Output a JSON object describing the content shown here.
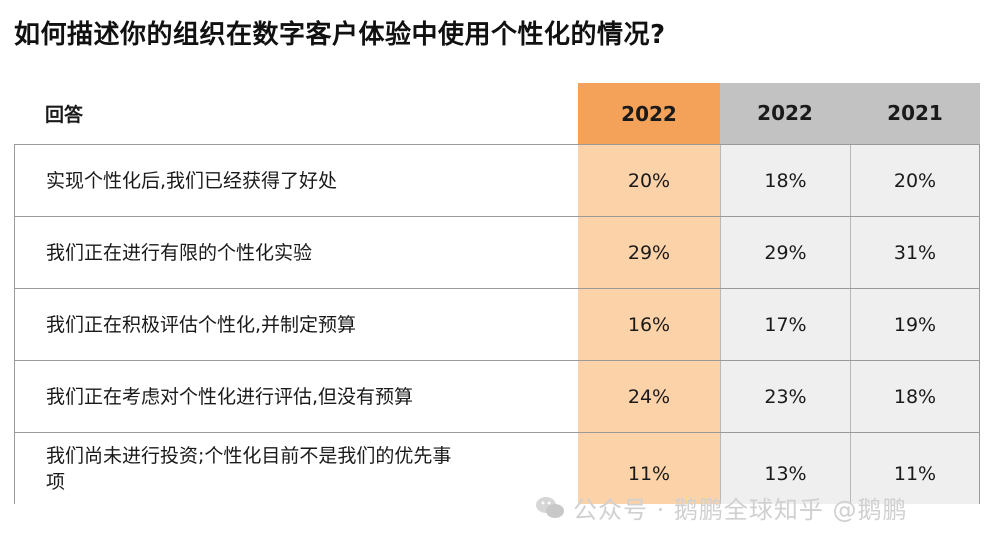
{
  "title": "如何描述你的组织在数字客户体验中使用个性化的情况?",
  "chart_data": {
    "type": "table",
    "columns": [
      "回答",
      "2022",
      "2022",
      "2021"
    ],
    "highlighted_column": 1,
    "rows": [
      {
        "label": "实现个性化后,我们已经获得了好处",
        "values": [
          "20%",
          "18%",
          "20%"
        ]
      },
      {
        "label": "我们正在进行有限的个性化实验",
        "values": [
          "29%",
          "29%",
          "31%"
        ]
      },
      {
        "label": "我们正在积极评估个性化,并制定预算",
        "values": [
          "16%",
          "17%",
          "19%"
        ]
      },
      {
        "label": "我们正在考虑对个性化进行评估,但没有预算",
        "values": [
          "24%",
          "23%",
          "18%"
        ]
      },
      {
        "label": "我们尚未进行投资;个性化目前不是我们的优先事项",
        "values": [
          "11%",
          "13%",
          "11%"
        ]
      }
    ],
    "colors": {
      "highlight_header": "#f4a25a",
      "highlight_cells": "#fcd2a8",
      "grey_header": "#c2c2c2",
      "grey_cells": "#efefef"
    }
  },
  "watermark": {
    "text": "公众号 · 鹅鹏全球知乎 @鹅鹏",
    "icon": "wechat-icon"
  }
}
